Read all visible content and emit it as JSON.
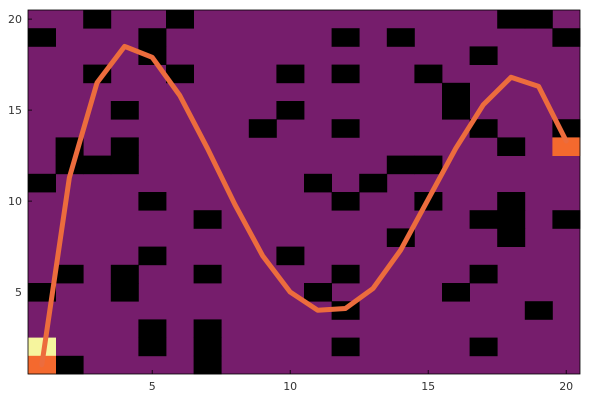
{
  "chart_data": {
    "type": "heatmap",
    "title": "",
    "xlabel": "",
    "ylabel": "",
    "xlim": [
      0.5,
      20.5
    ],
    "ylim": [
      0.5,
      20.5
    ],
    "x_ticks": [
      {
        "value": 5,
        "label": "5"
      },
      {
        "value": 10,
        "label": "10"
      },
      {
        "value": 15,
        "label": "15"
      },
      {
        "value": 20,
        "label": "20"
      }
    ],
    "y_ticks": [
      {
        "value": 5,
        "label": "5"
      },
      {
        "value": 10,
        "label": "10"
      },
      {
        "value": 15,
        "label": "15"
      },
      {
        "value": 20,
        "label": "20"
      }
    ],
    "grid_size": [
      20,
      20
    ],
    "colors": {
      "background": "#761d6c",
      "wall": "#000000",
      "start": "#f4692e",
      "goal_cell": "#f6f59e",
      "path": "#ec6c3d"
    },
    "walls": [
      [
        3,
        20
      ],
      [
        6,
        20
      ],
      [
        18,
        20
      ],
      [
        19,
        20
      ],
      [
        1,
        19
      ],
      [
        5,
        19
      ],
      [
        12,
        19
      ],
      [
        14,
        19
      ],
      [
        20,
        19
      ],
      [
        5,
        18
      ],
      [
        17,
        18
      ],
      [
        3,
        17
      ],
      [
        6,
        17
      ],
      [
        10,
        17
      ],
      [
        12,
        17
      ],
      [
        15,
        17
      ],
      [
        16,
        16
      ],
      [
        4,
        15
      ],
      [
        10,
        15
      ],
      [
        16,
        15
      ],
      [
        9,
        14
      ],
      [
        12,
        14
      ],
      [
        17,
        14
      ],
      [
        20,
        14
      ],
      [
        2,
        13
      ],
      [
        4,
        13
      ],
      [
        18,
        13
      ],
      [
        2,
        12
      ],
      [
        3,
        12
      ],
      [
        4,
        12
      ],
      [
        14,
        12
      ],
      [
        15,
        12
      ],
      [
        1,
        11
      ],
      [
        11,
        11
      ],
      [
        13,
        11
      ],
      [
        5,
        10
      ],
      [
        12,
        10
      ],
      [
        15,
        10
      ],
      [
        18,
        10
      ],
      [
        7,
        9
      ],
      [
        17,
        9
      ],
      [
        18,
        9
      ],
      [
        20,
        9
      ],
      [
        14,
        8
      ],
      [
        18,
        8
      ],
      [
        5,
        7
      ],
      [
        10,
        7
      ],
      [
        2,
        6
      ],
      [
        4,
        6
      ],
      [
        7,
        6
      ],
      [
        12,
        6
      ],
      [
        17,
        6
      ],
      [
        1,
        5
      ],
      [
        4,
        5
      ],
      [
        11,
        5
      ],
      [
        16,
        5
      ],
      [
        12,
        4
      ],
      [
        19,
        4
      ],
      [
        5,
        3
      ],
      [
        7,
        3
      ],
      [
        5,
        2
      ],
      [
        7,
        2
      ],
      [
        12,
        2
      ],
      [
        17,
        2
      ],
      [
        2,
        1
      ],
      [
        7,
        1
      ]
    ],
    "special_cells": [
      {
        "x": 1,
        "y": 2,
        "kind": "goal_cell"
      },
      {
        "x": 1,
        "y": 1,
        "kind": "start"
      },
      {
        "x": 20,
        "y": 13,
        "kind": "start"
      }
    ],
    "path": {
      "x": [
        1,
        2,
        3,
        4,
        5,
        6,
        7,
        8,
        9,
        10,
        11,
        12,
        13,
        14,
        15,
        16,
        17,
        18,
        19,
        20
      ],
      "y": [
        1.0,
        11.3,
        16.5,
        18.5,
        17.9,
        15.8,
        12.9,
        9.8,
        7.0,
        5.0,
        4.0,
        4.1,
        5.2,
        7.3,
        10.1,
        12.9,
        15.3,
        16.8,
        16.3,
        13.3
      ]
    }
  }
}
